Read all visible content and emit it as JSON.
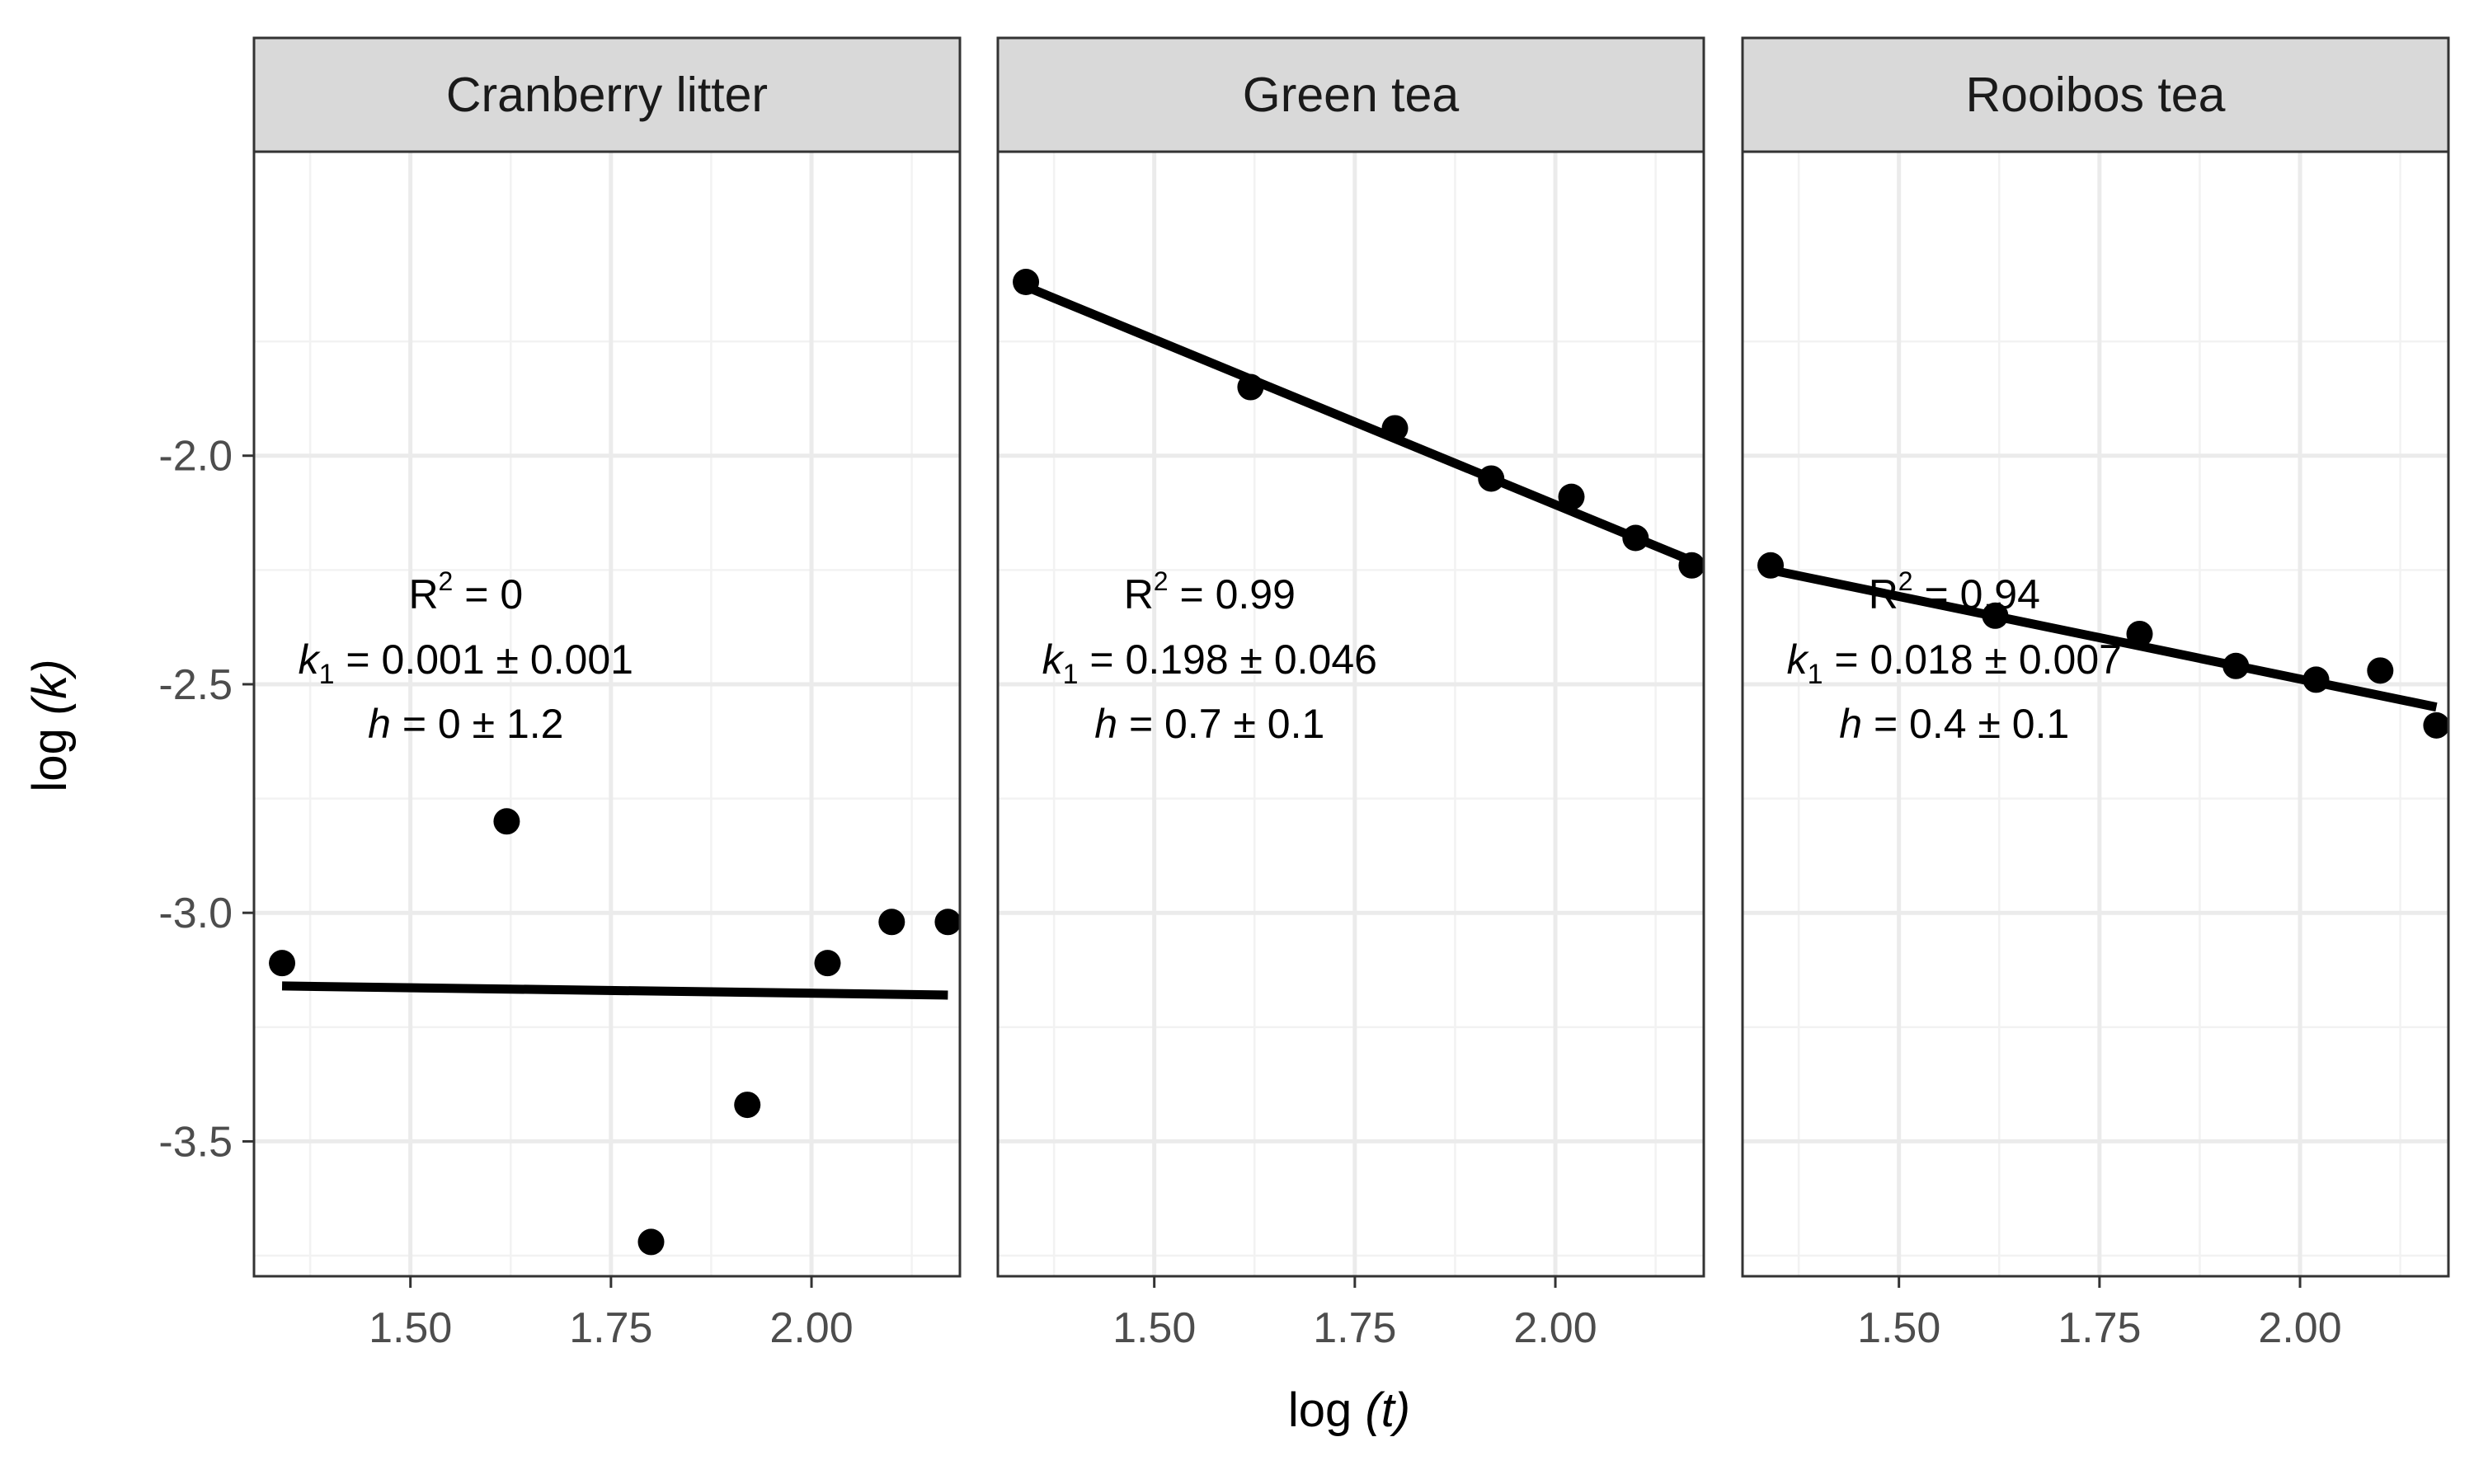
{
  "chart_data": {
    "type": "scatter",
    "xlabel": {
      "prefix": "log ",
      "var": "(t)"
    },
    "ylabel": {
      "prefix": "log ",
      "var": "(k)"
    },
    "xlim": [
      1.305,
      2.185
    ],
    "ylim": [
      -3.795,
      -1.335
    ],
    "xticks": [
      1.5,
      1.75,
      2.0
    ],
    "xtick_labels": [
      "1.50",
      "1.75",
      "2.00"
    ],
    "yticks": [
      -2.0,
      -2.5,
      -3.0,
      -3.5
    ],
    "ytick_labels": [
      "-2.0",
      "-2.5",
      "-3.0",
      "-3.5"
    ],
    "grid": true,
    "facets": [
      {
        "name": "Cranberry litter",
        "points": [
          {
            "x": 1.34,
            "y": -3.11
          },
          {
            "x": 1.62,
            "y": -2.8
          },
          {
            "x": 1.8,
            "y": -3.72
          },
          {
            "x": 1.92,
            "y": -3.42
          },
          {
            "x": 2.02,
            "y": -3.11
          },
          {
            "x": 2.1,
            "y": -3.02
          },
          {
            "x": 2.17,
            "y": -3.02
          }
        ],
        "fit": {
          "x": [
            1.34,
            2.17
          ],
          "y": [
            -3.16,
            -3.18
          ]
        },
        "annotation": {
          "r2": "0",
          "k1": "0.001 ± 0.001",
          "h": "0 ± 1.2"
        }
      },
      {
        "name": "Green tea",
        "points": [
          {
            "x": 1.34,
            "y": -1.62
          },
          {
            "x": 1.62,
            "y": -1.85
          },
          {
            "x": 1.8,
            "y": -1.94
          },
          {
            "x": 1.92,
            "y": -2.05
          },
          {
            "x": 2.02,
            "y": -2.09
          },
          {
            "x": 2.1,
            "y": -2.18
          },
          {
            "x": 2.17,
            "y": -2.24
          }
        ],
        "fit": {
          "x": [
            1.34,
            2.17
          ],
          "y": [
            -1.63,
            -2.23
          ]
        },
        "annotation": {
          "r2": "0.99",
          "k1": "0.198 ± 0.046",
          "h": "0.7 ± 0.1"
        }
      },
      {
        "name": "Rooibos tea",
        "points": [
          {
            "x": 1.34,
            "y": -2.24
          },
          {
            "x": 1.62,
            "y": -2.35
          },
          {
            "x": 1.8,
            "y": -2.39
          },
          {
            "x": 1.92,
            "y": -2.46
          },
          {
            "x": 2.02,
            "y": -2.49
          },
          {
            "x": 2.1,
            "y": -2.47
          },
          {
            "x": 2.17,
            "y": -2.59
          }
        ],
        "fit": {
          "x": [
            1.34,
            2.17
          ],
          "y": [
            -2.25,
            -2.55
          ]
        },
        "annotation": {
          "r2": "0.94",
          "k1": "0.018 ± 0.007",
          "h": "0.4 ± 0.1"
        }
      }
    ]
  }
}
